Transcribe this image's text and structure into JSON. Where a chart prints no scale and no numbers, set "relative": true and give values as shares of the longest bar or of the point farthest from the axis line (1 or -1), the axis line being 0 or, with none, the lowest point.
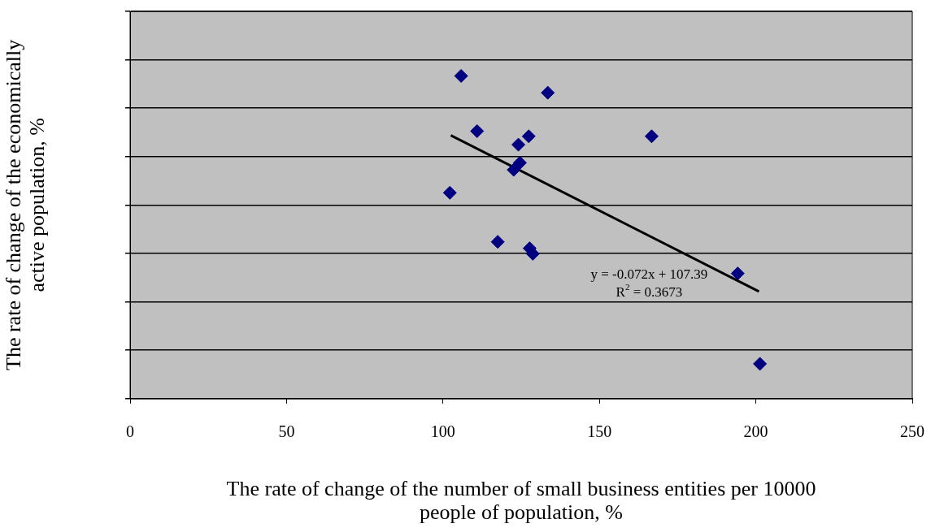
{
  "chart_data": {
    "type": "scatter",
    "relative": true,
    "xlabel": "The rate of change of the number of small business entities per 10000 people of population, %",
    "ylabel": "The rate of change of the economically active population, %",
    "xlim": [
      0,
      250
    ],
    "xticks": [
      0,
      50,
      100,
      150,
      200,
      250
    ],
    "grid": "y",
    "legend": false,
    "marker": "diamond",
    "annotations": [
      "y = -0.072x + 107.39",
      "R$^{2}$ = 0.3673"
    ],
    "series": [
      {
        "color": "#000080",
        "x": [
          105.8,
          133.5,
          110.9,
          127.4,
          166.7,
          124.1,
          124.6,
          122.6,
          102.2,
          117.5,
          127.7,
          128.7,
          194.2,
          201.3
        ],
        "values": [
          1,
          0.948,
          0.829,
          0.813,
          0.813,
          0.787,
          0.731,
          0.709,
          0.638,
          0.486,
          0.466,
          0.449,
          0.388,
          0.108
        ]
      },
      {
        "type": "line",
        "color": "#000000",
        "marker": "none",
        "x": [
          102.5,
          201
        ],
        "values": [
          0.816,
          0.332
        ]
      }
    ]
  }
}
